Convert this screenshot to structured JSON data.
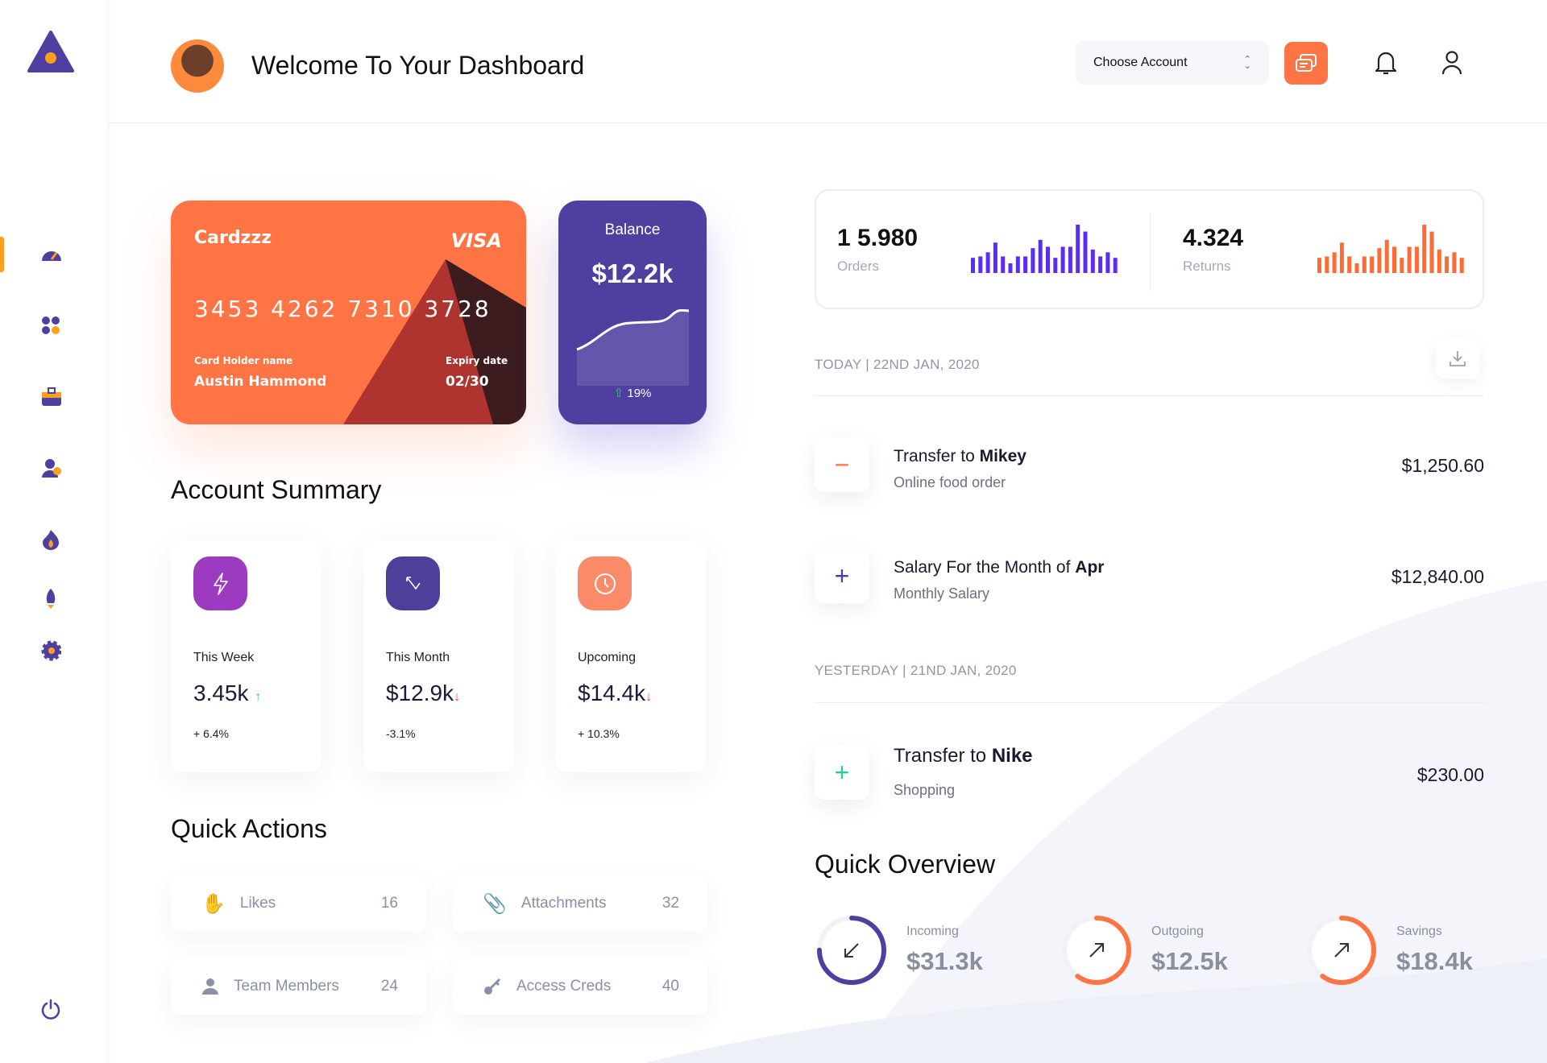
{
  "header": {
    "title": "Welcome To Your Dashboard",
    "account_select": {
      "value": "Choose Account"
    }
  },
  "sidebar": {
    "items": [
      "dashboard",
      "apps",
      "portfolio",
      "users",
      "trending",
      "launch",
      "settings"
    ],
    "logout": "power"
  },
  "card": {
    "brand": "Cardzzz",
    "network": "VISA",
    "number": "3453 4262 7310 3728",
    "holder_label": "Card Holder name",
    "holder": "Austin Hammond",
    "expiry_label": "Expiry date",
    "expiry": "02/30"
  },
  "balance": {
    "label": "Balance",
    "value": "$12.2k",
    "change": "19%"
  },
  "account_summary": {
    "title": "Account Summary",
    "cards": [
      {
        "label": "This Week",
        "value": "3.45k",
        "trend": "up",
        "change": "+ 6.4%",
        "color": "#9c3bc0",
        "icon": "bolt-icon"
      },
      {
        "label": "This Month",
        "value": "$12.9k",
        "trend": "down",
        "change": "-3.1%",
        "color": "#4f3f9a",
        "icon": "arrow-up-left-icon"
      },
      {
        "label": "Upcoming",
        "value": "$14.4k",
        "trend": "down",
        "change": "+ 10.3%",
        "color": "#fa8a68",
        "icon": "clock-icon"
      }
    ]
  },
  "quick_actions": {
    "title": "Quick Actions",
    "items": [
      {
        "label": "Likes",
        "count": "16",
        "icon": "hand-icon"
      },
      {
        "label": "Attachments",
        "count": "32",
        "icon": "paperclip-icon"
      },
      {
        "label": "Team Members",
        "count": "24",
        "icon": "user-icon"
      },
      {
        "label": "Access Creds",
        "count": "40",
        "icon": "key-icon"
      }
    ]
  },
  "stats": {
    "orders": {
      "value": "1 5.980",
      "label": "Orders",
      "color": "#5b2cf6",
      "bars": [
        55,
        60,
        75,
        110,
        60,
        35,
        60,
        60,
        90,
        120,
        95,
        55,
        95,
        95,
        175,
        150,
        85,
        60,
        75,
        55
      ]
    },
    "returns": {
      "value": "4.324",
      "label": "Returns",
      "color": "#ff6b35",
      "bars": [
        55,
        60,
        75,
        110,
        60,
        35,
        60,
        60,
        90,
        120,
        95,
        55,
        95,
        95,
        175,
        150,
        85,
        60,
        75,
        55
      ]
    }
  },
  "transactions": {
    "today_label": "TODAY | 22ND JAN, 2020",
    "yesterday_label": "YESTERDAY | 21ND JAN, 2020",
    "items": [
      {
        "title": "Transfer to ",
        "bold": "Mikey",
        "sub": "Online food order",
        "amount": "$1,250.60",
        "sign": "−",
        "color": "#ff7444"
      },
      {
        "title": "Salary For the Month of ",
        "bold": "Apr",
        "sub": "Monthly Salary",
        "amount": "$12,840.00",
        "sign": "+",
        "color": "#4f3fa0"
      },
      {
        "title": "Transfer to ",
        "bold": "Nike",
        "sub": "Shopping",
        "amount": "$230.00",
        "sign": "+",
        "color": "#2ecc9a"
      }
    ]
  },
  "quick_overview": {
    "title": "Quick Overview",
    "items": [
      {
        "label": "Incoming",
        "value": "$31.3k",
        "color": "#4f3fa0",
        "progress": 0.75
      },
      {
        "label": "Outgoing",
        "value": "$12.5k",
        "color": "#ff7444",
        "progress": 0.6
      },
      {
        "label": "Savings",
        "value": "$18.4k",
        "color": "#ff7444",
        "progress": 0.6
      }
    ]
  }
}
